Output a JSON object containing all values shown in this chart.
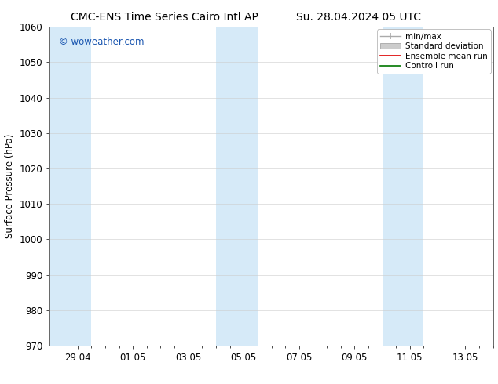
{
  "title_left": "CMC-ENS Time Series Cairo Intl AP",
  "title_right": "Su. 28.04.2024 05 UTC",
  "ylabel": "Surface Pressure (hPa)",
  "ylim": [
    970,
    1060
  ],
  "yticks": [
    970,
    980,
    990,
    1000,
    1010,
    1020,
    1030,
    1040,
    1050,
    1060
  ],
  "xtick_labels": [
    "29.04",
    "01.05",
    "03.05",
    "05.05",
    "07.05",
    "09.05",
    "11.05",
    "13.05"
  ],
  "xtick_positions": [
    1,
    3,
    5,
    7,
    9,
    11,
    13,
    15
  ],
  "xlim": [
    0,
    16
  ],
  "band_ranges": [
    [
      0.0,
      1.5
    ],
    [
      6.0,
      7.5
    ],
    [
      12.0,
      13.5
    ]
  ],
  "band_color": "#d6eaf8",
  "watermark": "© woweather.com",
  "watermark_color": "#1a56b0",
  "background_color": "#ffffff",
  "plot_bg_color": "#ffffff",
  "legend_labels": [
    "min/max",
    "Standard deviation",
    "Ensemble mean run",
    "Controll run"
  ],
  "legend_colors": [
    "#aaaaaa",
    "#cccccc",
    "#dd0000",
    "#007700"
  ],
  "title_fontsize": 10,
  "axis_label_fontsize": 8.5,
  "tick_fontsize": 8.5,
  "legend_fontsize": 7.5
}
